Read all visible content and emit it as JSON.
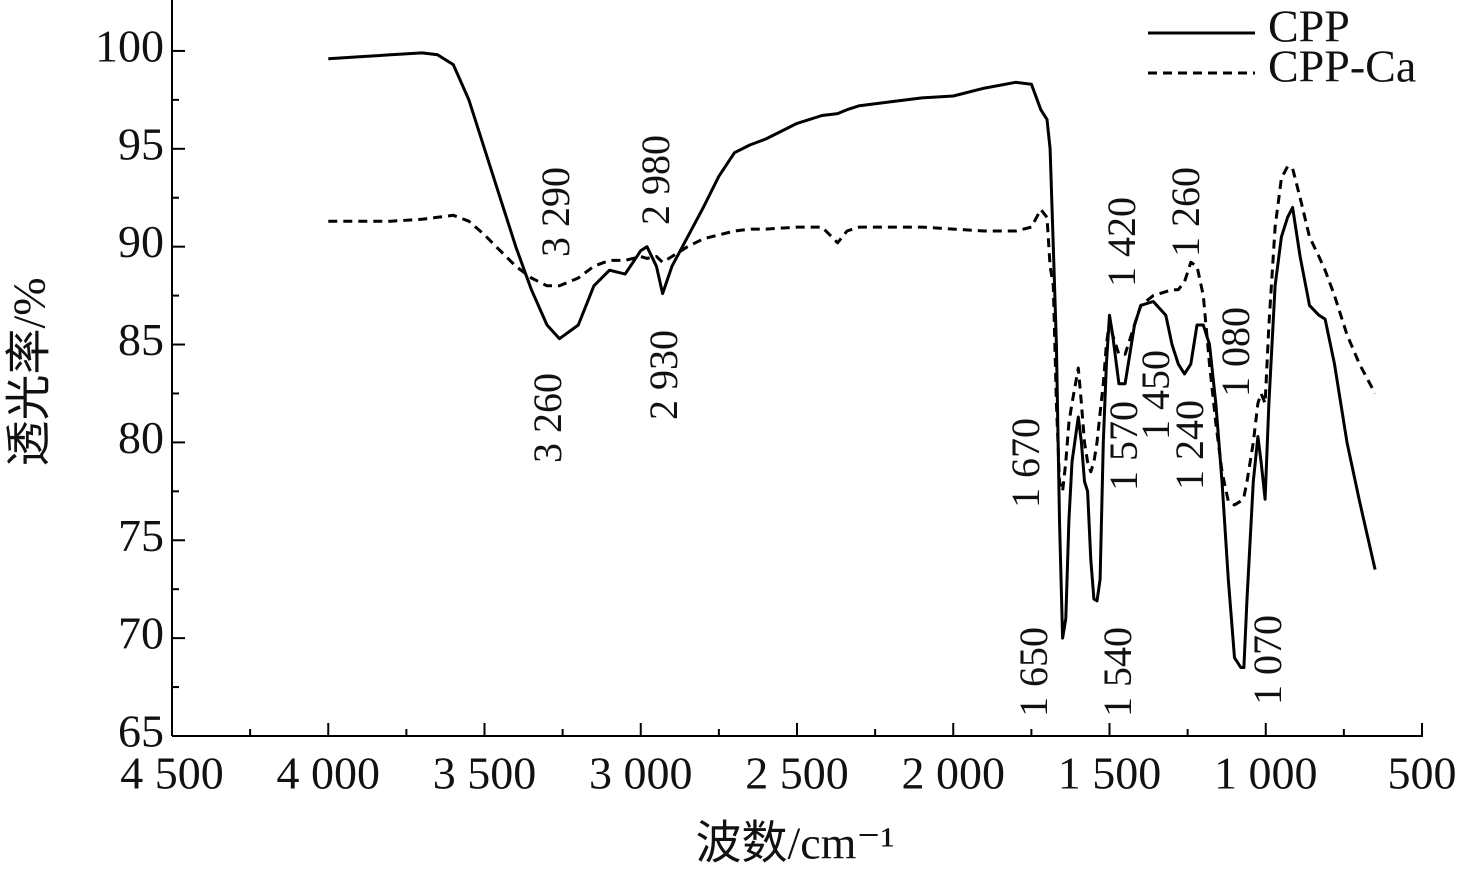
{
  "chart_data": {
    "type": "line",
    "xlabel": "波数/cm⁻¹",
    "ylabel": "透光率/%",
    "xlim": [
      4500,
      500
    ],
    "ylim": [
      65,
      102.5
    ],
    "xticks": [
      {
        "value": 4500,
        "label": "4 500"
      },
      {
        "value": 4000,
        "label": "4 000"
      },
      {
        "value": 3500,
        "label": "3 500"
      },
      {
        "value": 3000,
        "label": "3 000"
      },
      {
        "value": 2500,
        "label": "2 500"
      },
      {
        "value": 2000,
        "label": "2 000"
      },
      {
        "value": 1500,
        "label": "1 500"
      },
      {
        "value": 1000,
        "label": "1 000"
      },
      500
    ],
    "yticks": [
      65,
      70,
      75,
      80,
      85,
      90,
      95,
      100
    ],
    "grid": false,
    "legend": "upper right",
    "x": [
      4000,
      3900,
      3800,
      3700,
      3650,
      3600,
      3550,
      3500,
      3450,
      3400,
      3350,
      3300,
      3260,
      3200,
      3150,
      3100,
      3050,
      3000,
      2980,
      2950,
      2930,
      2900,
      2850,
      2800,
      2750,
      2700,
      2650,
      2600,
      2500,
      2420,
      2370,
      2340,
      2300,
      2200,
      2100,
      2000,
      1900,
      1800,
      1750,
      1720,
      1700,
      1690,
      1680,
      1670,
      1660,
      1650,
      1640,
      1630,
      1620,
      1600,
      1590,
      1580,
      1570,
      1560,
      1550,
      1540,
      1530,
      1520,
      1510,
      1500,
      1490,
      1470,
      1450,
      1420,
      1400,
      1360,
      1320,
      1300,
      1280,
      1260,
      1240,
      1220,
      1200,
      1180,
      1160,
      1140,
      1120,
      1100,
      1080,
      1070,
      1060,
      1040,
      1025,
      1015,
      1002,
      990,
      970,
      950,
      930,
      914,
      890,
      860,
      830,
      810,
      780,
      740,
      700,
      650
    ],
    "series": [
      {
        "name": "CPP",
        "color": "#000000",
        "linestyle": "solid",
        "values": [
          99.6,
          99.7,
          99.8,
          99.9,
          99.8,
          99.3,
          97.5,
          95,
          92.5,
          90,
          87.8,
          86,
          85.3,
          86,
          88,
          88.8,
          88.6,
          89.8,
          90,
          89,
          87.6,
          89,
          90.5,
          92,
          93.6,
          94.8,
          95.2,
          95.5,
          96.3,
          96.7,
          96.8,
          97,
          97.2,
          97.4,
          97.6,
          97.7,
          98.1,
          98.4,
          98.3,
          97,
          96.5,
          95,
          90,
          85,
          76,
          70,
          71,
          76,
          79,
          81.3,
          80,
          78,
          77.5,
          74,
          72,
          71.9,
          73,
          80,
          84,
          86.5,
          85.5,
          83,
          83,
          86,
          87,
          87.2,
          86.5,
          85,
          84,
          83.5,
          84,
          86,
          86,
          85,
          82,
          78,
          73,
          69,
          68.5,
          68.5,
          72,
          78,
          80.3,
          79,
          77.1,
          82,
          88,
          90.5,
          91.5,
          92,
          89.5,
          87,
          86.5,
          86.3,
          84,
          80,
          77,
          73.5
        ]
      },
      {
        "name": "CPP-Ca",
        "color": "#000000",
        "linestyle": "dashed",
        "values": [
          91.3,
          91.3,
          91.3,
          91.4,
          91.5,
          91.6,
          91.3,
          90.6,
          89.8,
          89,
          88.4,
          88,
          88,
          88.4,
          89,
          89.3,
          89.3,
          89.5,
          89.4,
          89.5,
          89.2,
          89.5,
          90,
          90.4,
          90.6,
          90.8,
          90.9,
          90.9,
          91,
          91,
          90.2,
          90.8,
          91,
          91,
          91,
          90.9,
          90.8,
          90.8,
          91,
          91.9,
          91.5,
          89,
          88,
          82,
          78,
          77.5,
          79,
          81,
          82,
          83.8,
          82,
          80,
          79,
          78.5,
          79,
          80,
          81.5,
          83,
          85,
          86.2,
          85.5,
          84.5,
          84.5,
          86,
          87,
          87.5,
          87.7,
          87.8,
          87.8,
          88.2,
          89.2,
          89,
          87.5,
          84,
          81,
          78.5,
          77,
          76.8,
          77,
          77.2,
          78,
          80,
          82,
          82.5,
          82,
          86,
          91,
          93.5,
          94.1,
          94,
          92.5,
          90.5,
          89.5,
          88.8,
          87.5,
          85.5,
          84,
          82.5
        ]
      }
    ],
    "annotations": [
      "3 290",
      "2 980",
      "3 260",
      "2 930",
      "1 670",
      "1 650",
      "1 570",
      "1 540",
      "1 450",
      "1 420",
      "1 260",
      "1 240",
      "1 080",
      "1 070"
    ]
  }
}
